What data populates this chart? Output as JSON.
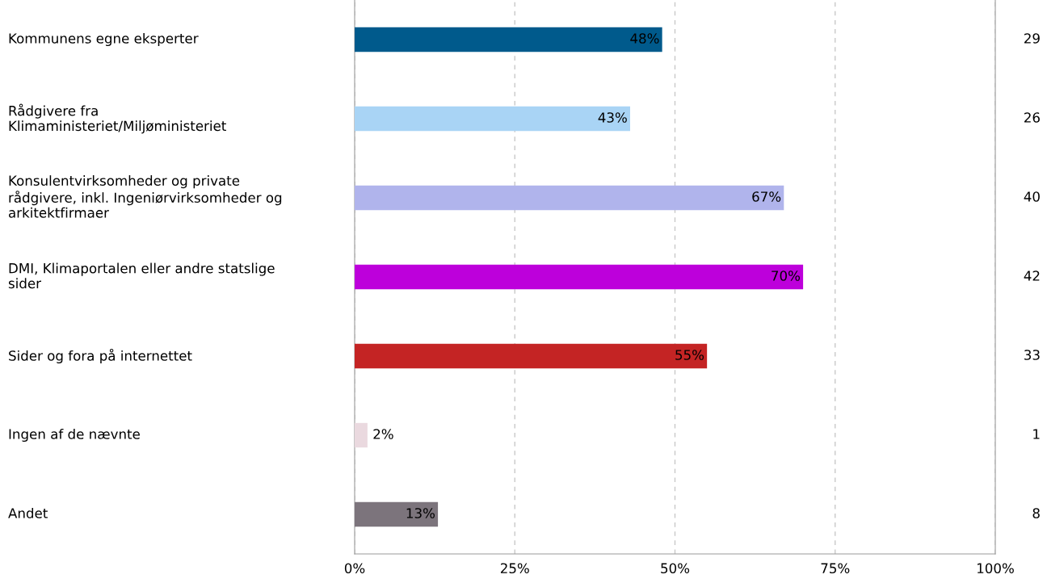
{
  "chart_data": {
    "type": "bar",
    "orientation": "horizontal",
    "categories": [
      "Kommunens egne eksperter",
      "Rådgivere fra\nKlimaministeriet/Miljøministeriet",
      "Konsulentvirksomheder og private\nrådgivere, inkl. Ingeniørvirksomheder og\narkitektfirmaer",
      "DMI, Klimaportalen eller andre statslige\nsider",
      "Sider og fora på internettet",
      "Ingen af de nævnte",
      "Andet"
    ],
    "values": [
      48,
      43,
      67,
      70,
      55,
      2,
      13
    ],
    "colors": [
      "#005a8c",
      "#a9d4f5",
      "#b0b4ec",
      "#bd00db",
      "#c42424",
      "#ead9df",
      "#7c747c"
    ],
    "value_labels": [
      "48%",
      "43%",
      "67%",
      "70%",
      "55%",
      "2%",
      "13%"
    ],
    "xlim": [
      0,
      100
    ],
    "xticks": [
      {
        "value": 0,
        "label": "0%"
      },
      {
        "value": 25,
        "label": "25%"
      },
      {
        "value": 50,
        "label": "50%"
      },
      {
        "value": 75,
        "label": "75%"
      },
      {
        "value": 100,
        "label": "100%"
      }
    ],
    "grid": "x",
    "annotations": [
      "29",
      "26",
      "40",
      "42",
      "33",
      "1",
      "8"
    ]
  }
}
